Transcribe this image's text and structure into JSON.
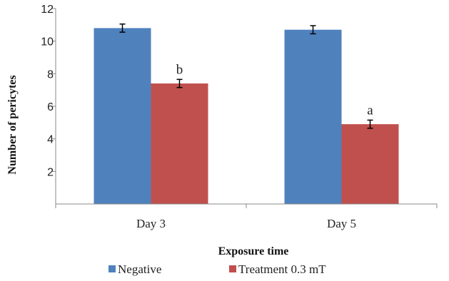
{
  "chart_data": {
    "type": "bar",
    "categories": [
      "Day 3",
      "Day 5"
    ],
    "series": [
      {
        "name": "Negative",
        "values": [
          10.8,
          10.7
        ],
        "errors": [
          0.25,
          0.25
        ],
        "color": "#4f81bd"
      },
      {
        "name": "Treatment 0.3 mT",
        "values": [
          7.4,
          4.9
        ],
        "errors": [
          0.25,
          0.25
        ],
        "color": "#c0504d"
      }
    ],
    "annotations": [
      {
        "series": 1,
        "category": 0,
        "text": "b"
      },
      {
        "series": 1,
        "category": 1,
        "text": "a"
      }
    ],
    "xlabel": "Exposure time",
    "ylabel": "Number of pericytes",
    "ylim": [
      0,
      12
    ],
    "yticks": [
      2,
      4,
      6,
      8,
      10,
      12
    ],
    "ytick_labels": [
      "2",
      "4",
      "6",
      "8",
      "10",
      "12"
    ],
    "grid": false,
    "legend": "bottom"
  }
}
